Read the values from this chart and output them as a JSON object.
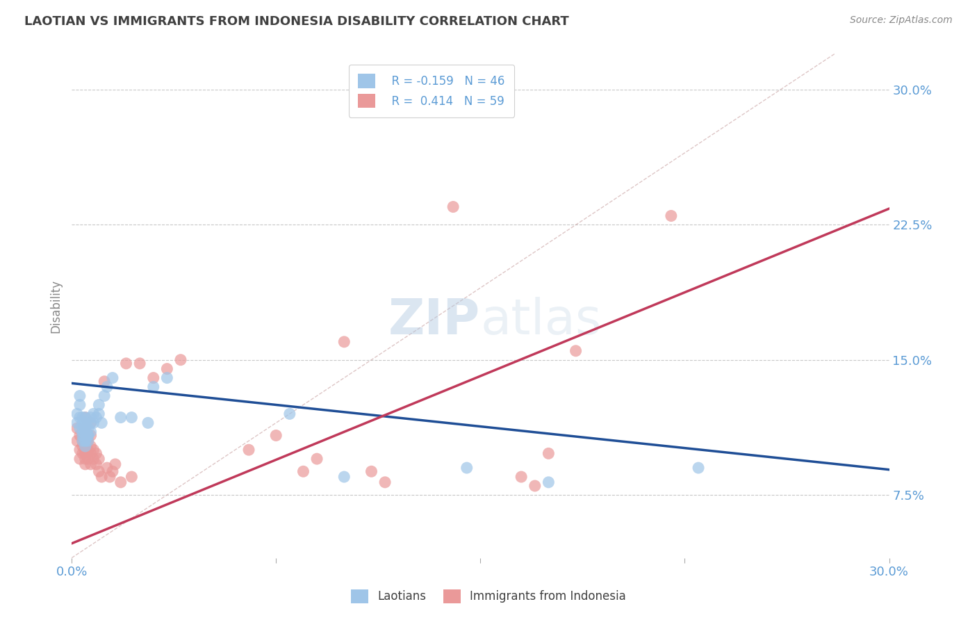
{
  "title": "LAOTIAN VS IMMIGRANTS FROM INDONESIA DISABILITY CORRELATION CHART",
  "source": "Source: ZipAtlas.com",
  "ylabel": "Disability",
  "xmin": 0.0,
  "xmax": 0.3,
  "ymin": 0.04,
  "ymax": 0.32,
  "watermark_zip": "ZIP",
  "watermark_atlas": "atlas",
  "legend_r1": "R = -0.159",
  "legend_n1": "N = 46",
  "legend_r2": "R =  0.414",
  "legend_n2": "N = 59",
  "color_blue": "#9fc5e8",
  "color_pink": "#ea9999",
  "color_line_blue": "#1f4e96",
  "color_line_pink": "#c0395a",
  "color_diagonal": "#c8a0a0",
  "title_color": "#404040",
  "axis_label_color": "#5b9bd5",
  "grid_color": "#c8c8c8",
  "laotians_x": [
    0.002,
    0.002,
    0.003,
    0.003,
    0.003,
    0.003,
    0.004,
    0.004,
    0.004,
    0.004,
    0.004,
    0.004,
    0.005,
    0.005,
    0.005,
    0.005,
    0.005,
    0.005,
    0.005,
    0.005,
    0.006,
    0.006,
    0.006,
    0.006,
    0.007,
    0.007,
    0.007,
    0.008,
    0.008,
    0.009,
    0.01,
    0.01,
    0.011,
    0.012,
    0.013,
    0.015,
    0.018,
    0.022,
    0.028,
    0.03,
    0.035,
    0.08,
    0.1,
    0.145,
    0.175,
    0.23
  ],
  "laotians_y": [
    0.12,
    0.115,
    0.13,
    0.125,
    0.118,
    0.112,
    0.108,
    0.115,
    0.11,
    0.105,
    0.118,
    0.112,
    0.105,
    0.11,
    0.108,
    0.115,
    0.112,
    0.118,
    0.105,
    0.102,
    0.108,
    0.105,
    0.112,
    0.108,
    0.115,
    0.118,
    0.11,
    0.115,
    0.12,
    0.118,
    0.12,
    0.125,
    0.115,
    0.13,
    0.135,
    0.14,
    0.118,
    0.118,
    0.115,
    0.135,
    0.14,
    0.12,
    0.085,
    0.09,
    0.082,
    0.09
  ],
  "indonesia_x": [
    0.002,
    0.002,
    0.003,
    0.003,
    0.003,
    0.004,
    0.004,
    0.004,
    0.004,
    0.005,
    0.005,
    0.005,
    0.005,
    0.005,
    0.005,
    0.005,
    0.005,
    0.005,
    0.006,
    0.006,
    0.006,
    0.006,
    0.007,
    0.007,
    0.007,
    0.007,
    0.007,
    0.008,
    0.008,
    0.009,
    0.009,
    0.01,
    0.01,
    0.011,
    0.012,
    0.013,
    0.014,
    0.015,
    0.016,
    0.018,
    0.02,
    0.022,
    0.025,
    0.03,
    0.035,
    0.04,
    0.065,
    0.075,
    0.085,
    0.09,
    0.1,
    0.11,
    0.115,
    0.14,
    0.165,
    0.17,
    0.175,
    0.185,
    0.22
  ],
  "indonesia_y": [
    0.105,
    0.112,
    0.1,
    0.108,
    0.095,
    0.102,
    0.108,
    0.098,
    0.105,
    0.092,
    0.098,
    0.102,
    0.108,
    0.112,
    0.118,
    0.095,
    0.1,
    0.105,
    0.095,
    0.1,
    0.105,
    0.108,
    0.092,
    0.098,
    0.102,
    0.108,
    0.115,
    0.095,
    0.1,
    0.092,
    0.098,
    0.088,
    0.095,
    0.085,
    0.138,
    0.09,
    0.085,
    0.088,
    0.092,
    0.082,
    0.148,
    0.085,
    0.148,
    0.14,
    0.145,
    0.15,
    0.1,
    0.108,
    0.088,
    0.095,
    0.16,
    0.088,
    0.082,
    0.235,
    0.085,
    0.08,
    0.098,
    0.155,
    0.23
  ]
}
